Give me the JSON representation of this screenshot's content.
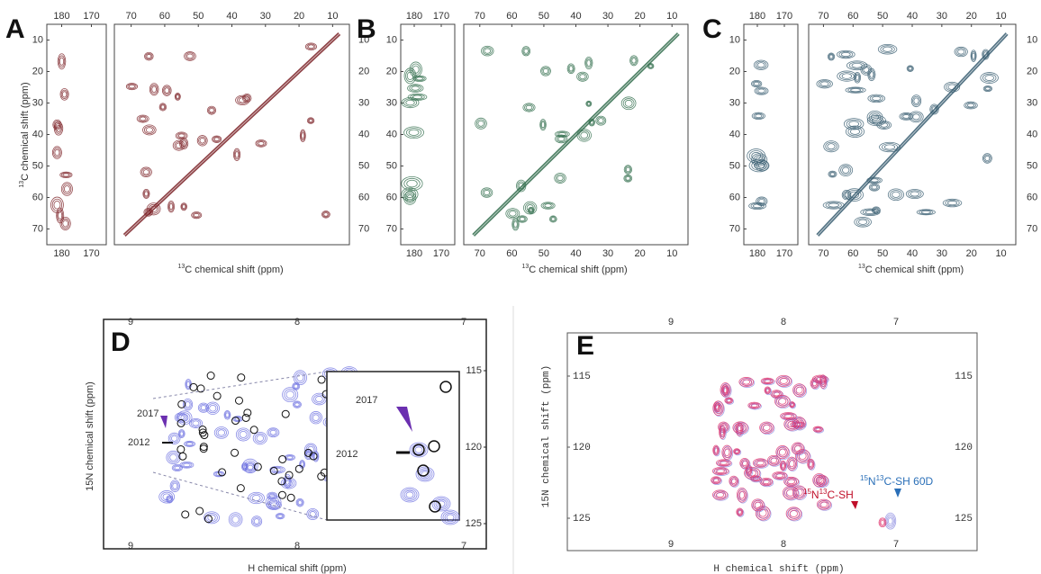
{
  "panels_abc": [
    {
      "label": "A",
      "strip_xticks": [
        180,
        170
      ],
      "main_xticks": [
        70,
        60,
        50,
        40,
        30,
        20,
        10
      ],
      "yticks": [
        10,
        20,
        30,
        40,
        50,
        60,
        70
      ],
      "right_yticks": [
        10,
        20,
        30,
        40,
        50,
        60,
        70
      ],
      "x_label": {
        "sup": "13",
        "text": "C chemical shift (ppm)"
      },
      "y_label": {
        "sup": "13",
        "text": "C chemical shift (ppm)"
      }
    },
    {
      "label": "B",
      "strip_xticks": [
        180,
        170
      ],
      "main_xticks": [
        70,
        60,
        50,
        40,
        30,
        20,
        10
      ],
      "yticks": [
        10,
        20,
        30,
        40,
        50,
        60,
        70
      ],
      "bottom_main_xticks": [
        70,
        60,
        50,
        40,
        30,
        20,
        10
      ],
      "x_label": {
        "sup": "13",
        "text": "C chemical shift (ppm)"
      }
    },
    {
      "label": "C",
      "strip_xticks": [
        180,
        170
      ],
      "main_xticks": [
        70,
        60,
        50,
        40,
        30,
        20,
        10
      ],
      "yticks": [
        10,
        20,
        30,
        40,
        50,
        60,
        70
      ],
      "right_yticks": [
        10,
        20,
        30,
        40,
        50,
        60,
        70
      ],
      "bottom_main_xticks": [
        70,
        60,
        50,
        40,
        30,
        20,
        10
      ],
      "x_label": {
        "sup": "13",
        "text": "C chemical shift (ppm)"
      }
    }
  ],
  "panel_d": {
    "label": "D",
    "xticks": [
      9,
      8,
      7
    ],
    "yticks": [
      115,
      120,
      125
    ],
    "x_label": "H chemical shift (ppm)",
    "y_label": "15N chemical shift (ppm)",
    "annotations": [
      "2017",
      "2012"
    ],
    "inset_annotations": [
      "2017",
      "2012"
    ]
  },
  "panel_e": {
    "label": "E",
    "xticks": [
      9,
      8,
      7
    ],
    "yticks": [
      115,
      120,
      125
    ],
    "x_label": "H chemical shift (ppm)",
    "y_label": "15N chemical shift (ppm)",
    "annotation_red": [
      "15",
      "N",
      "13",
      "C-SH"
    ],
    "annotation_blue": [
      "15",
      "N",
      "13",
      "C-SH 60D"
    ]
  }
}
